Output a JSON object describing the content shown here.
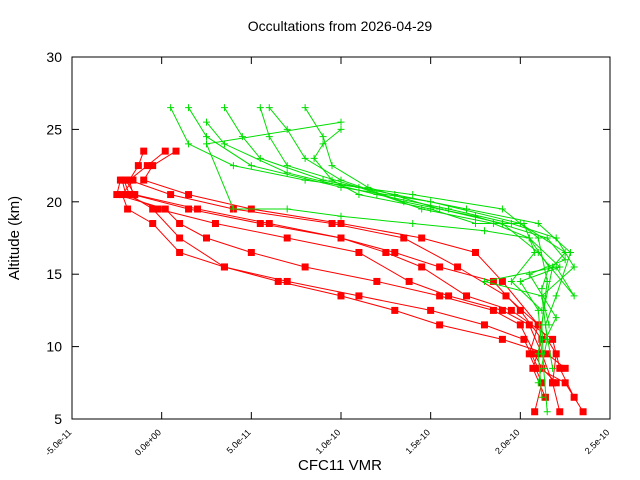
{
  "chart_data": {
    "type": "scatter",
    "title": "Occultations from 2026-04-29",
    "xlabel": "CFC11 VMR",
    "ylabel": "Altitude (km)",
    "xlim": [
      -5e-11,
      2.5e-10
    ],
    "ylim": [
      5,
      30
    ],
    "x_ticks": [
      -5e-11,
      0,
      5e-11,
      1e-10,
      1.5e-10,
      2e-10,
      2.5e-10
    ],
    "x_tick_labels": [
      "-5.0e-11",
      "0.0e+00",
      "5.0e-11",
      "1.0e-10",
      "1.5e-10",
      "2.0e-10",
      "2.5e-10"
    ],
    "y_ticks": [
      5,
      10,
      15,
      20,
      25,
      30
    ],
    "y_tick_labels": [
      "5",
      "10",
      "15",
      "20",
      "25",
      "30"
    ],
    "grid": false,
    "legend": "none",
    "colors": {
      "red": "#ff0000",
      "green": "#00dd00",
      "axis": "#000000"
    },
    "series": [
      {
        "color": "#ff0000",
        "marker": "square",
        "profiles": [
          [
            [
              2.08e-10,
              5.5
            ],
            [
              2.12e-10,
              7.5
            ],
            [
              2.05e-10,
              9.5
            ],
            [
              2.1e-10,
              11.5
            ],
            [
              1.9e-10,
              14.5
            ],
            [
              1.75e-10,
              16.5
            ],
            [
              1.45e-10,
              17.5
            ],
            [
              1e-10,
              18.5
            ],
            [
              5e-11,
              19.5
            ],
            [
              1.5e-11,
              20.5
            ],
            [
              -1e-11,
              21.5
            ],
            [
              -5e-12,
              22.5
            ],
            [
              8e-12,
              23.5
            ]
          ],
          [
            [
              2.22e-10,
              5.5
            ],
            [
              2.18e-10,
              7.5
            ],
            [
              2.2e-10,
              9.5
            ],
            [
              2.1e-10,
              11.5
            ],
            [
              1.92e-10,
              13.5
            ],
            [
              1.65e-10,
              15.5
            ],
            [
              1.35e-10,
              17.5
            ],
            [
              9.5e-11,
              18.5
            ],
            [
              4e-11,
              19.5
            ],
            [
              5e-12,
              20.5
            ],
            [
              -1.8e-11,
              21.5
            ],
            [
              -1.3e-11,
              22.5
            ],
            [
              -1e-11,
              23.5
            ]
          ],
          [
            [
              2.14e-10,
              6.5
            ],
            [
              2.07e-10,
              8.5
            ],
            [
              2.12e-10,
              10.5
            ],
            [
              2e-10,
              12.5
            ],
            [
              1.85e-10,
              14.5
            ],
            [
              1.55e-10,
              15.5
            ],
            [
              1.3e-10,
              16.5
            ],
            [
              1e-10,
              17.5
            ],
            [
              5.5e-11,
              18.5
            ],
            [
              1.5e-11,
              19.5
            ],
            [
              -1.6e-11,
              20.5
            ],
            [
              -1.8e-11,
              21.5
            ],
            [
              -8e-12,
              22.5
            ],
            [
              2e-12,
              23.5
            ]
          ],
          [
            [
              2.3e-10,
              6.5
            ],
            [
              2.22e-10,
              8.5
            ],
            [
              2.18e-10,
              10.5
            ],
            [
              1.95e-10,
              12.5
            ],
            [
              1.7e-10,
              13.5
            ],
            [
              1.45e-10,
              15.5
            ],
            [
              1.25e-10,
              16.5
            ],
            [
              1e-10,
              17.5
            ],
            [
              6e-11,
              18.5
            ],
            [
              2e-11,
              19.5
            ],
            [
              -1.5e-11,
              20.5
            ],
            [
              -2e-11,
              21.5
            ]
          ],
          [
            [
              2.18e-10,
              7.5
            ],
            [
              2.12e-10,
              9.5
            ],
            [
              2.05e-10,
              11.5
            ],
            [
              1.9e-10,
              12.5
            ],
            [
              1.6e-10,
              13.5
            ],
            [
              1.38e-10,
              14.5
            ],
            [
              1.1e-10,
              16.5
            ],
            [
              7e-11,
              17.5
            ],
            [
              3e-11,
              18.5
            ],
            [
              -2e-12,
              19.5
            ],
            [
              -2e-11,
              20.5
            ],
            [
              -2.2e-11,
              21.5
            ]
          ],
          [
            [
              2.25e-10,
              8.5
            ],
            [
              2.15e-10,
              9.5
            ],
            [
              1.9e-10,
              10.5
            ],
            [
              1.55e-10,
              11.5
            ],
            [
              1.3e-10,
              12.5
            ],
            [
              1e-10,
              13.5
            ],
            [
              6.5e-11,
              14.5
            ],
            [
              3.5e-11,
              15.5
            ],
            [
              1e-11,
              16.5
            ],
            [
              -5e-12,
              18.5
            ],
            [
              -1.9e-11,
              19.5
            ],
            [
              -2.2e-11,
              20.5
            ],
            [
              -1.6e-11,
              21.5
            ]
          ],
          [
            [
              2.35e-10,
              5.5
            ],
            [
              2.25e-10,
              7.5
            ],
            [
              2.1e-10,
              8.5
            ],
            [
              2.02e-10,
              10.5
            ],
            [
              1.8e-10,
              11.5
            ],
            [
              1.5e-10,
              12.5
            ],
            [
              1.1e-10,
              13.5
            ],
            [
              7e-11,
              14.5
            ],
            [
              3.5e-11,
              15.5
            ],
            [
              1e-11,
              17.5
            ],
            [
              -5e-12,
              19.5
            ],
            [
              -1.8e-11,
              20.5
            ],
            [
              -2.1e-11,
              21.5
            ]
          ],
          [
            [
              2.2e-10,
              7.5
            ],
            [
              2.12e-10,
              8.5
            ],
            [
              2.08e-10,
              9.5
            ],
            [
              2e-10,
              11.5
            ],
            [
              1.85e-10,
              12.5
            ],
            [
              1.55e-10,
              13.5
            ],
            [
              1.2e-10,
              14.5
            ],
            [
              8e-11,
              15.5
            ],
            [
              5e-11,
              16.5
            ],
            [
              2.5e-11,
              17.5
            ],
            [
              1e-11,
              18.5
            ],
            [
              2e-12,
              19.5
            ],
            [
              -2.5e-11,
              20.5
            ],
            [
              -2.3e-11,
              21.5
            ]
          ]
        ]
      },
      {
        "color": "#00dd00",
        "marker": "plus",
        "profiles": [
          [
            [
              2.15e-10,
              5.5
            ],
            [
              2.13e-10,
              8.5
            ],
            [
              2.12e-10,
              11.5
            ],
            [
              2.15e-10,
              14.5
            ],
            [
              2.1e-10,
              17.5
            ],
            [
              1.9e-10,
              19.5
            ],
            [
              1.4e-10,
              20.5
            ],
            [
              8e-11,
              21.5
            ],
            [
              4e-11,
              22.5
            ],
            [
              1.5e-11,
              24
            ],
            [
              5e-12,
              26.5
            ]
          ],
          [
            [
              2.12e-10,
              6.5
            ],
            [
              2.1e-10,
              9.5
            ],
            [
              2.13e-10,
              12.5
            ],
            [
              2.18e-10,
              15.5
            ],
            [
              2.25e-10,
              16.5
            ],
            [
              2e-10,
              18.5
            ],
            [
              1.5e-10,
              20
            ],
            [
              1e-10,
              21
            ],
            [
              5e-11,
              22.5
            ],
            [
              2.5e-11,
              24.5
            ],
            [
              1.5e-11,
              26.5
            ]
          ],
          [
            [
              2.1e-10,
              7.5
            ],
            [
              2.15e-10,
              10.5
            ],
            [
              2.12e-10,
              13.5
            ],
            [
              2.3e-10,
              15.5
            ],
            [
              2.2e-10,
              17.5
            ],
            [
              1.95e-10,
              18.5
            ],
            [
              1.6e-10,
              19.5
            ],
            [
              1.2e-10,
              20.5
            ],
            [
              7e-11,
              22
            ],
            [
              3.5e-11,
              24
            ],
            [
              2.5e-11,
              25.5
            ]
          ],
          [
            [
              2.18e-10,
              8.5
            ],
            [
              2.14e-10,
              11.5
            ],
            [
              2.2e-10,
              13.5
            ],
            [
              2.28e-10,
              16.5
            ],
            [
              2.1e-10,
              18.5
            ],
            [
              1.7e-10,
              19.5
            ],
            [
              1.3e-10,
              20.5
            ],
            [
              9e-11,
              21.5
            ],
            [
              5.5e-11,
              23
            ],
            [
              4.5e-11,
              24.5
            ],
            [
              3.5e-11,
              26.5
            ]
          ],
          [
            [
              2.12e-10,
              9.5
            ],
            [
              2.1e-10,
              12.5
            ],
            [
              2e-10,
              14.5
            ],
            [
              2.22e-10,
              15.5
            ],
            [
              2.05e-10,
              17.5
            ],
            [
              1.85e-10,
              18.5
            ],
            [
              1.45e-10,
              19.5
            ],
            [
              1.1e-10,
              21
            ],
            [
              7e-11,
              22.5
            ],
            [
              6e-11,
              24.5
            ],
            [
              5.5e-11,
              26.5
            ]
          ],
          [
            [
              2.14e-10,
              10.5
            ],
            [
              2.2e-10,
              12
            ],
            [
              2.05e-10,
              15
            ],
            [
              2.25e-10,
              16
            ],
            [
              2.15e-10,
              17.5
            ],
            [
              1.75e-10,
              19
            ],
            [
              1.35e-10,
              20
            ],
            [
              1e-10,
              21.5
            ],
            [
              8e-11,
              23
            ],
            [
              7e-11,
              25
            ],
            [
              6e-11,
              26.5
            ]
          ],
          [
            [
              2.16e-10,
              11.5
            ],
            [
              2.12e-10,
              13.5
            ],
            [
              1.8e-10,
              14.5
            ],
            [
              2.2e-10,
              15.5
            ],
            [
              2.3e-10,
              13.5
            ],
            [
              2.1e-10,
              16.5
            ],
            [
              1.9e-10,
              18.5
            ],
            [
              1.55e-10,
              19.5
            ],
            [
              1.15e-10,
              21
            ],
            [
              9.5e-11,
              22.5
            ],
            [
              9e-11,
              24.5
            ],
            [
              8e-11,
              26.5
            ]
          ],
          [
            [
              2.12e-10,
              12.5
            ],
            [
              1.95e-10,
              14.5
            ],
            [
              2.08e-10,
              16.5
            ],
            [
              2.02e-10,
              18.5
            ],
            [
              1.75e-10,
              18.5
            ],
            [
              1.5e-10,
              19.5
            ],
            [
              1.1e-10,
              20.5
            ],
            [
              9.5e-11,
              21.5
            ],
            [
              8.5e-11,
              23
            ],
            [
              9e-11,
              24
            ],
            [
              1e-10,
              25
            ]
          ],
          [
            [
              2.12e-10,
              14
            ],
            [
              2.16e-10,
              15.5
            ],
            [
              2.05e-10,
              17.5
            ],
            [
              1.8e-10,
              18
            ],
            [
              1.4e-10,
              18.5
            ],
            [
              1e-10,
              19
            ],
            [
              7e-11,
              19.5
            ],
            [
              4e-11,
              19.5
            ],
            [
              2.5e-11,
              24
            ],
            [
              1e-10,
              25.5
            ]
          ]
        ]
      }
    ]
  }
}
